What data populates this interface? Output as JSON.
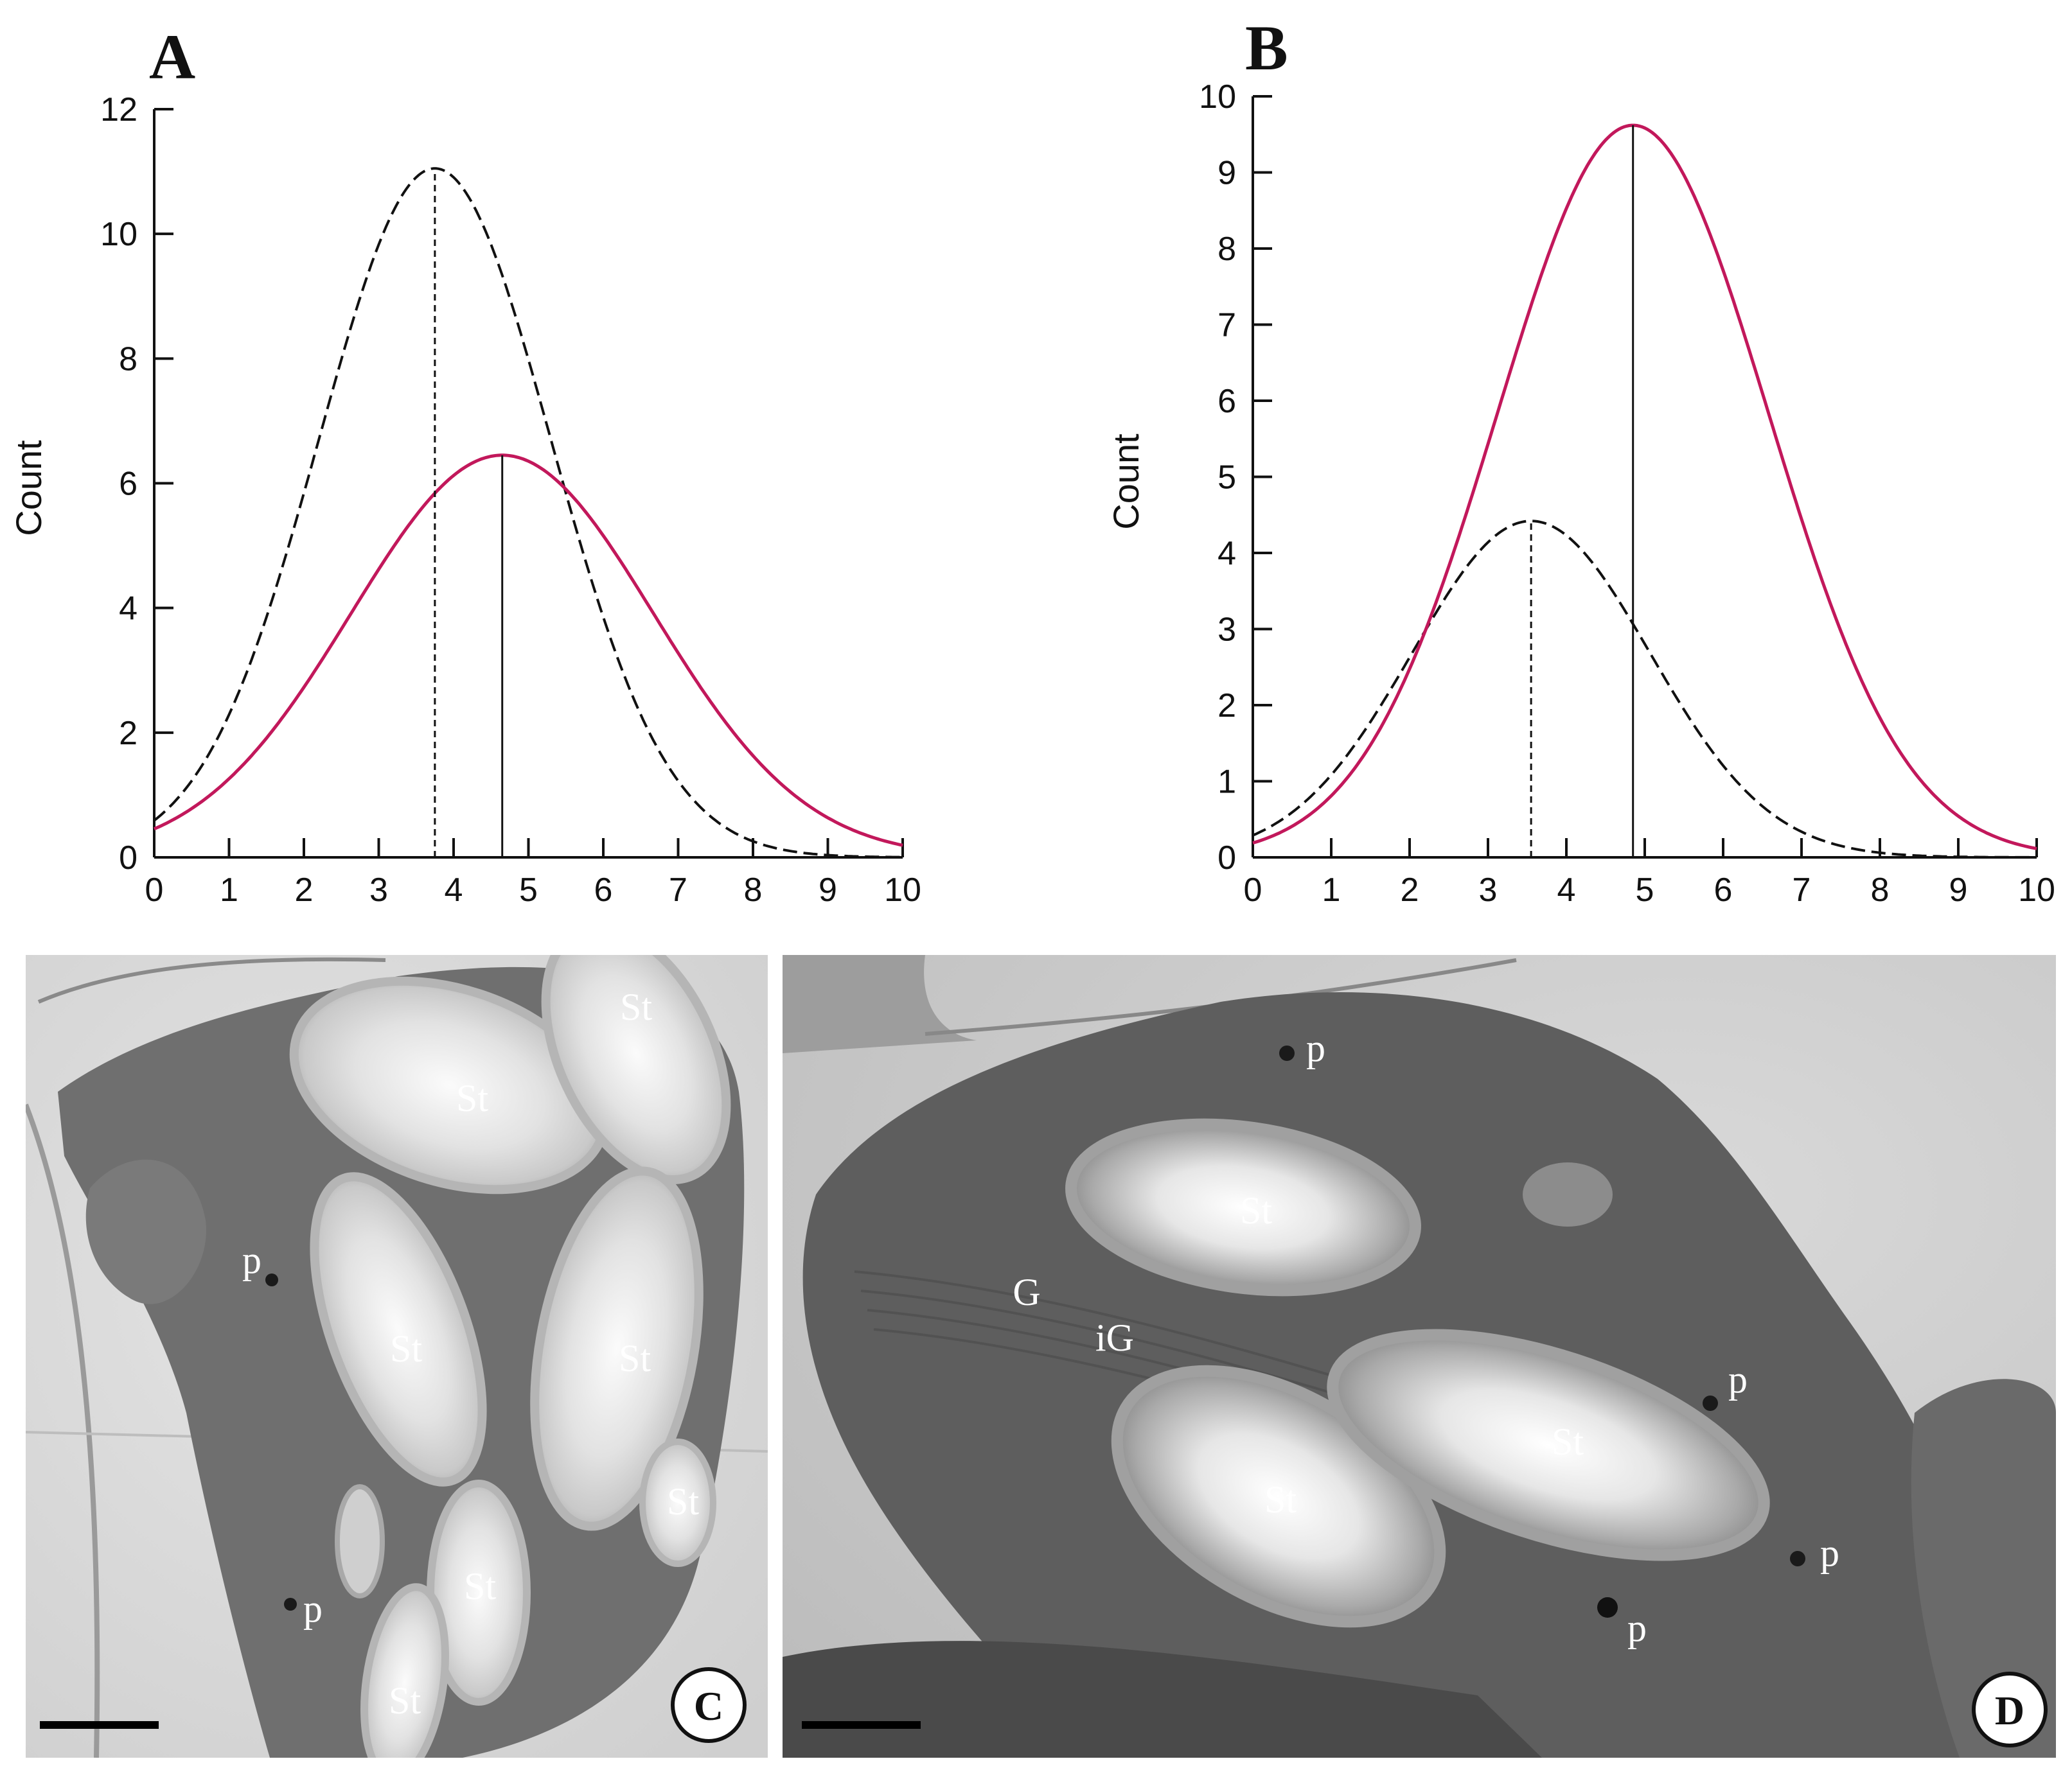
{
  "panels": {
    "A": {
      "letter": "A",
      "ylabel": "Count"
    },
    "B": {
      "letter": "B",
      "ylabel": "Count"
    },
    "C": {
      "letter": "C",
      "labels": [
        "St",
        "St",
        "St",
        "St",
        "St",
        "St",
        "St",
        "p",
        "p"
      ]
    },
    "D": {
      "letter": "D",
      "labels": [
        "St",
        "St",
        "St",
        "G",
        "iG",
        "p",
        "p",
        "p",
        "p"
      ]
    }
  },
  "colors": {
    "red_curve": "#c2185b",
    "black_curve": "#111111"
  },
  "chart_data": [
    {
      "panel": "A",
      "type": "line",
      "xlim": [
        0,
        10
      ],
      "ylim": [
        0,
        12
      ],
      "xticks": [
        "0",
        "1",
        "2",
        "3",
        "4",
        "5",
        "6",
        "7",
        "8",
        "9",
        "10"
      ],
      "yticks": [
        "0",
        "2",
        "4",
        "6",
        "8",
        "10",
        "12"
      ],
      "ylabel": "Count",
      "series": [
        {
          "style": "dashed",
          "color": "#111111",
          "mean": 3.75,
          "sd": 1.55,
          "peak": 11.05
        },
        {
          "style": "solid",
          "color": "#c2185b",
          "mean": 4.65,
          "sd": 2.02,
          "peak": 6.45
        }
      ],
      "mean_lines": [
        {
          "x": 3.75,
          "style": "dashed"
        },
        {
          "x": 4.65,
          "style": "solid"
        }
      ]
    },
    {
      "panel": "B",
      "type": "line",
      "xlim": [
        0,
        10
      ],
      "ylim": [
        0,
        10
      ],
      "xticks": [
        "0",
        "1",
        "2",
        "3",
        "4",
        "5",
        "6",
        "7",
        "8",
        "9",
        "10"
      ],
      "yticks": [
        "0",
        "1",
        "2",
        "3",
        "4",
        "5",
        "6",
        "7",
        "8",
        "9",
        "10"
      ],
      "ylabel": "Count",
      "series": [
        {
          "style": "dashed",
          "color": "#111111",
          "mean": 3.55,
          "sd": 1.52,
          "peak": 4.42
        },
        {
          "style": "solid",
          "color": "#c2185b",
          "mean": 4.85,
          "sd": 1.73,
          "peak": 9.62
        }
      ],
      "mean_lines": [
        {
          "x": 3.55,
          "style": "dashed"
        },
        {
          "x": 4.85,
          "style": "solid"
        }
      ]
    }
  ]
}
